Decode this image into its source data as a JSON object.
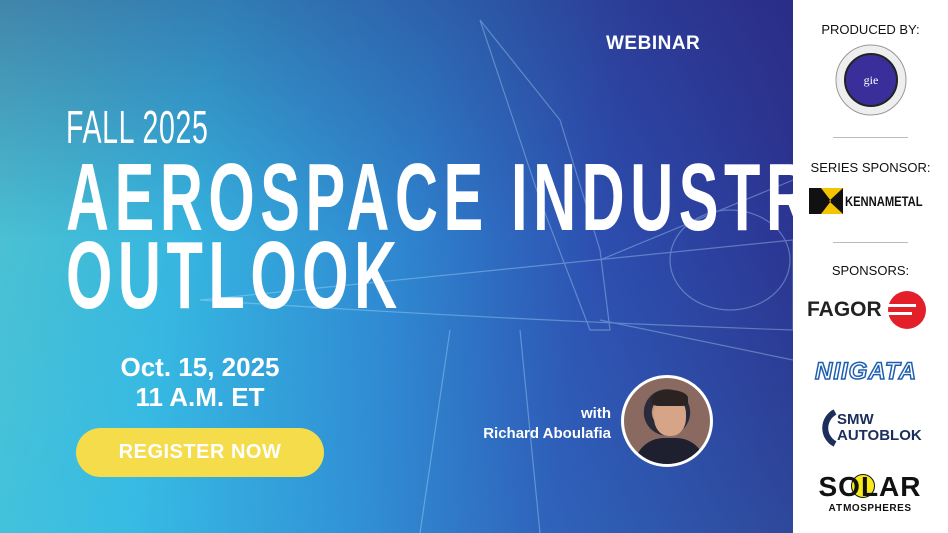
{
  "hero": {
    "badge": "WEBINAR",
    "season": "FALL 2025",
    "title_line1": "AEROSPACE INDUSTRY",
    "title_line2": "OUTLOOK",
    "date": "Oct. 15, 2025",
    "time": "11 A.M. ET",
    "register_label": "REGISTER NOW",
    "with_label": "with",
    "speaker": "Richard Aboulafia"
  },
  "sidebar": {
    "produced_by": "PRODUCED BY:",
    "producer_logo": "GIE media",
    "series_sponsor_label": "SERIES SPONSOR:",
    "series_sponsor": "KENNAMETAL",
    "sponsors_label": "SPONSORS:",
    "sponsors": [
      "FAGOR",
      "NIIGATA",
      "SMW AUTOBLOK",
      "SOLAR ATMOSPHERES"
    ]
  },
  "colors": {
    "button": "#f5dc4a",
    "fagor_red": "#e3202a",
    "niigata_blue": "#1f5fb0",
    "smw_navy": "#1c2e5c",
    "kennametal_yellow": "#f2c500"
  }
}
